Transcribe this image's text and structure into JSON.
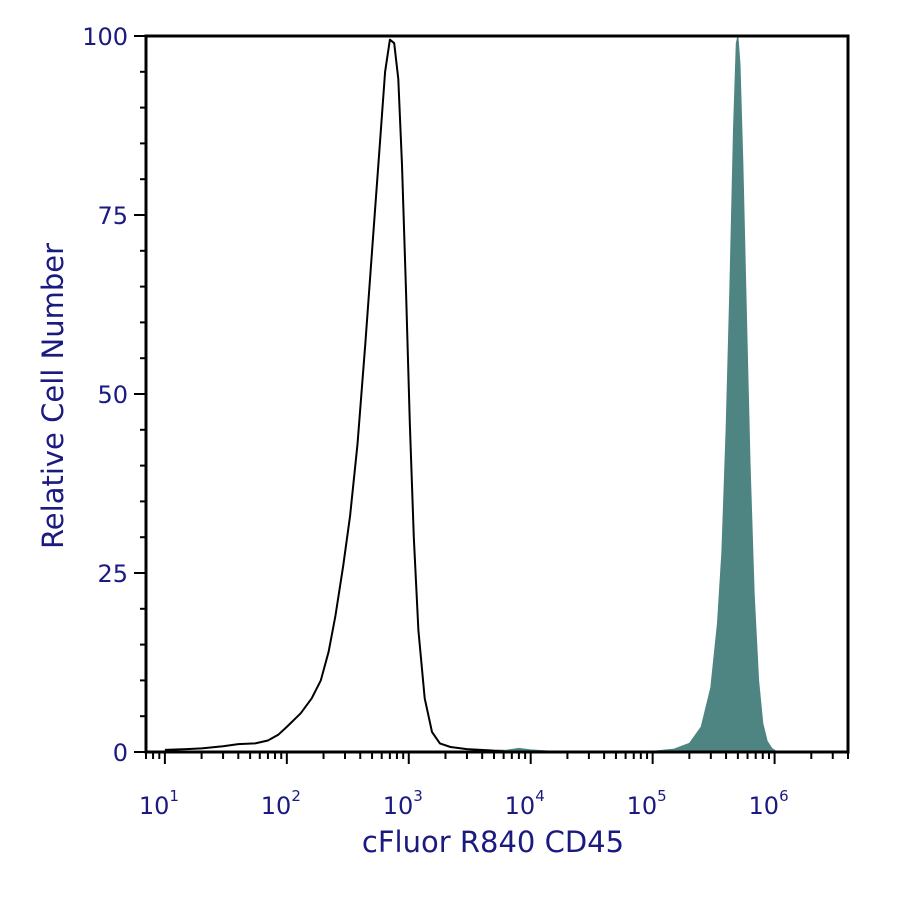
{
  "chart_data": {
    "type": "area",
    "xlabel": "cFluor R840 CD45",
    "ylabel": "Relative Cell Number",
    "x_scale": "log10",
    "xlim": [
      7,
      4000000
    ],
    "ylim": [
      0,
      100
    ],
    "grid": false,
    "legend": "none",
    "x_ticks": [
      {
        "base": "10",
        "exp": "1",
        "value": 10
      },
      {
        "base": "10",
        "exp": "2",
        "value": 100
      },
      {
        "base": "10",
        "exp": "3",
        "value": 1000
      },
      {
        "base": "10",
        "exp": "4",
        "value": 10000
      },
      {
        "base": "10",
        "exp": "5",
        "value": 100000
      },
      {
        "base": "10",
        "exp": "6",
        "value": 1000000
      }
    ],
    "y_ticks": [
      {
        "label": "0",
        "value": 0
      },
      {
        "label": "25",
        "value": 25
      },
      {
        "label": "50",
        "value": 50
      },
      {
        "label": "75",
        "value": 75
      },
      {
        "label": "100",
        "value": 100
      }
    ],
    "series": [
      {
        "style": "outline",
        "color": "#000000",
        "points": [
          [
            10,
            0.3
          ],
          [
            15,
            0.4
          ],
          [
            20,
            0.5
          ],
          [
            30,
            0.8
          ],
          [
            40,
            1.1
          ],
          [
            55,
            1.2
          ],
          [
            70,
            1.6
          ],
          [
            85,
            2.4
          ],
          [
            100,
            3.5
          ],
          [
            130,
            5.4
          ],
          [
            160,
            7.5
          ],
          [
            190,
            10.0
          ],
          [
            220,
            14.0
          ],
          [
            250,
            19.0
          ],
          [
            290,
            26.0
          ],
          [
            330,
            33.0
          ],
          [
            380,
            43.0
          ],
          [
            440,
            57.0
          ],
          [
            510,
            72.0
          ],
          [
            580,
            85.0
          ],
          [
            640,
            95.0
          ],
          [
            700,
            99.5
          ],
          [
            760,
            99.0
          ],
          [
            820,
            94.0
          ],
          [
            880,
            82.0
          ],
          [
            950,
            64.0
          ],
          [
            1020,
            46.0
          ],
          [
            1100,
            30.0
          ],
          [
            1200,
            17.0
          ],
          [
            1350,
            7.5
          ],
          [
            1550,
            2.8
          ],
          [
            1800,
            1.2
          ],
          [
            2200,
            0.7
          ],
          [
            3000,
            0.4
          ],
          [
            5000,
            0.2
          ],
          [
            8000,
            0.1
          ],
          [
            15000,
            0.05
          ]
        ]
      },
      {
        "style": "filled",
        "color": "#4e8582",
        "points": [
          [
            3500,
            0.0
          ],
          [
            6000,
            0.2
          ],
          [
            8000,
            0.5
          ],
          [
            10000,
            0.3
          ],
          [
            15000,
            0.1
          ],
          [
            30000,
            0.05
          ],
          [
            100000,
            0.1
          ],
          [
            150000,
            0.4
          ],
          [
            200000,
            1.2
          ],
          [
            250000,
            3.5
          ],
          [
            300000,
            9.0
          ],
          [
            340000,
            18.0
          ],
          [
            370000,
            28.0
          ],
          [
            400000,
            45.0
          ],
          [
            430000,
            65.0
          ],
          [
            460000,
            87.0
          ],
          [
            485000,
            99.0
          ],
          [
            500000,
            100.0
          ],
          [
            520000,
            96.0
          ],
          [
            550000,
            82.0
          ],
          [
            590000,
            60.0
          ],
          [
            630000,
            40.0
          ],
          [
            680000,
            22.0
          ],
          [
            740000,
            10.0
          ],
          [
            800000,
            4.0
          ],
          [
            870000,
            1.5
          ],
          [
            950000,
            0.5
          ],
          [
            1050000,
            0.0
          ]
        ]
      }
    ]
  }
}
